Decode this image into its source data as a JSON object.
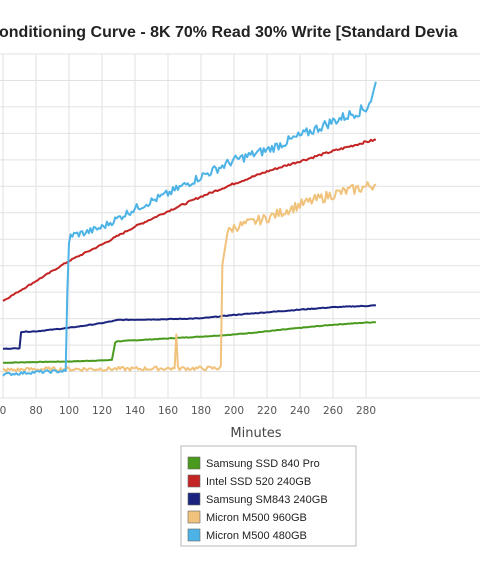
{
  "chart_data": {
    "type": "line",
    "title": "onditioning Curve - 8K 70% Read 30% Write [Standard Devia",
    "xlabel": "Minutes",
    "ylabel": "",
    "xlim": [
      60,
      286
    ],
    "ylim": [
      300,
      1600
    ],
    "x_ticks": [
      "0",
      "80",
      "100",
      "120",
      "140",
      "160",
      "180",
      "200",
      "220",
      "240",
      "260",
      "280"
    ],
    "grid": true,
    "legend_position": "bottom-center",
    "series": [
      {
        "name": "Samsung SSD 840 Pro",
        "color": "#4a9a1e",
        "points": [
          [
            60,
            433
          ],
          [
            80,
            436
          ],
          [
            100,
            438
          ],
          [
            120,
            442
          ],
          [
            126,
            444
          ],
          [
            127,
            475
          ],
          [
            128,
            510
          ],
          [
            129,
            514
          ],
          [
            140,
            518
          ],
          [
            160,
            525
          ],
          [
            180,
            532
          ],
          [
            200,
            540
          ],
          [
            220,
            552
          ],
          [
            240,
            565
          ],
          [
            260,
            577
          ],
          [
            280,
            585
          ],
          [
            286,
            587
          ]
        ]
      },
      {
        "name": "Intel SSD 520 240GB",
        "color": "#c42424",
        "points": [
          [
            60,
            667
          ],
          [
            80,
            742
          ],
          [
            100,
            818
          ],
          [
            120,
            880
          ],
          [
            140,
            948
          ],
          [
            160,
            1006
          ],
          [
            180,
            1061
          ],
          [
            200,
            1110
          ],
          [
            220,
            1156
          ],
          [
            240,
            1195
          ],
          [
            260,
            1233
          ],
          [
            280,
            1268
          ],
          [
            286,
            1276
          ]
        ]
      },
      {
        "name": "Samsung SM843 240GB",
        "color": "#1a237e",
        "points": [
          [
            60,
            486
          ],
          [
            70,
            488
          ],
          [
            71,
            550
          ],
          [
            80,
            552
          ],
          [
            100,
            565
          ],
          [
            120,
            583
          ],
          [
            130,
            595
          ],
          [
            140,
            596
          ],
          [
            160,
            598
          ],
          [
            180,
            601
          ],
          [
            200,
            614
          ],
          [
            220,
            624
          ],
          [
            240,
            634
          ],
          [
            260,
            643
          ],
          [
            280,
            648
          ],
          [
            286,
            650
          ]
        ]
      },
      {
        "name": "Micron M500 960GB",
        "color": "#f0c27b",
        "points": [
          [
            60,
            405
          ],
          [
            80,
            409
          ],
          [
            100,
            409
          ],
          [
            120,
            410
          ],
          [
            140,
            410
          ],
          [
            160,
            412
          ],
          [
            164,
            412
          ],
          [
            165,
            540
          ],
          [
            166,
            412
          ],
          [
            180,
            412
          ],
          [
            190,
            412
          ],
          [
            192,
            420
          ],
          [
            193,
            805
          ],
          [
            196,
            925
          ],
          [
            200,
            945
          ],
          [
            220,
            980
          ],
          [
            240,
            1030
          ],
          [
            260,
            1070
          ],
          [
            280,
            1098
          ],
          [
            286,
            1108
          ]
        ]
      },
      {
        "name": "Micron M500 480GB",
        "color": "#4db3e6",
        "points": [
          [
            60,
            389
          ],
          [
            80,
            398
          ],
          [
            98,
            402
          ],
          [
            99,
            700
          ],
          [
            100,
            880
          ],
          [
            101,
            915
          ],
          [
            110,
            925
          ],
          [
            120,
            945
          ],
          [
            140,
            1016
          ],
          [
            160,
            1072
          ],
          [
            180,
            1137
          ],
          [
            200,
            1198
          ],
          [
            220,
            1237
          ],
          [
            240,
            1290
          ],
          [
            260,
            1346
          ],
          [
            280,
            1394
          ],
          [
            284,
            1440
          ],
          [
            286,
            1495
          ]
        ]
      }
    ]
  }
}
